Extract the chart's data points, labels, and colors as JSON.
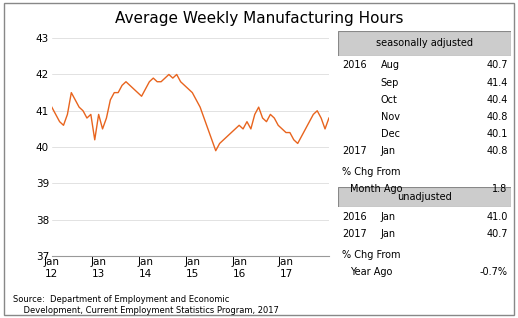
{
  "title": "Average Weekly Manufacturing Hours",
  "line_color": "#E8641E",
  "background_color": "#ffffff",
  "ylim": [
    37,
    43
  ],
  "yticks": [
    37,
    38,
    39,
    40,
    41,
    42,
    43
  ],
  "source_text": "Source:  Department of Employment and Economic\n    Development, Current Employment Statistics Program, 2017",
  "seasonally_adjusted_label": "seasonally adjusted",
  "unadjusted_label": "unadjusted",
  "pct_chg_month": "1.8",
  "pct_chg_year": "-0.7%",
  "x_tick_labels": [
    "Jan\n12",
    "Jan\n13",
    "Jan\n14",
    "Jan\n15",
    "Jan\n16",
    "Jan\n17"
  ],
  "sa_rows": [
    [
      "2016",
      "Aug",
      "40.7"
    ],
    [
      "",
      "Sep",
      "41.4"
    ],
    [
      "",
      "Oct",
      "40.4"
    ],
    [
      "",
      "Nov",
      "40.8"
    ],
    [
      "",
      "Dec",
      "40.1"
    ],
    [
      "2017",
      "Jan",
      "40.8"
    ]
  ],
  "unadj_rows": [
    [
      "2016",
      "Jan",
      "41.0"
    ],
    [
      "2017",
      "Jan",
      "40.7"
    ]
  ],
  "series": [
    41.1,
    40.9,
    40.7,
    40.6,
    40.9,
    41.5,
    41.3,
    41.1,
    41.0,
    40.8,
    40.9,
    40.2,
    40.9,
    40.5,
    40.8,
    41.3,
    41.5,
    41.5,
    41.7,
    41.8,
    41.7,
    41.6,
    41.5,
    41.4,
    41.6,
    41.8,
    41.9,
    41.8,
    41.8,
    41.9,
    42.0,
    41.9,
    42.0,
    41.8,
    41.7,
    41.6,
    41.5,
    41.3,
    41.1,
    40.8,
    40.5,
    40.2,
    39.9,
    40.1,
    40.2,
    40.3,
    40.4,
    40.5,
    40.6,
    40.5,
    40.7,
    40.5,
    40.9,
    41.1,
    40.8,
    40.7,
    40.9,
    40.8,
    40.6,
    40.5,
    40.4,
    40.4,
    40.2,
    40.1,
    40.3,
    40.5,
    40.7,
    40.9,
    41.0,
    40.8,
    40.5,
    40.8
  ]
}
